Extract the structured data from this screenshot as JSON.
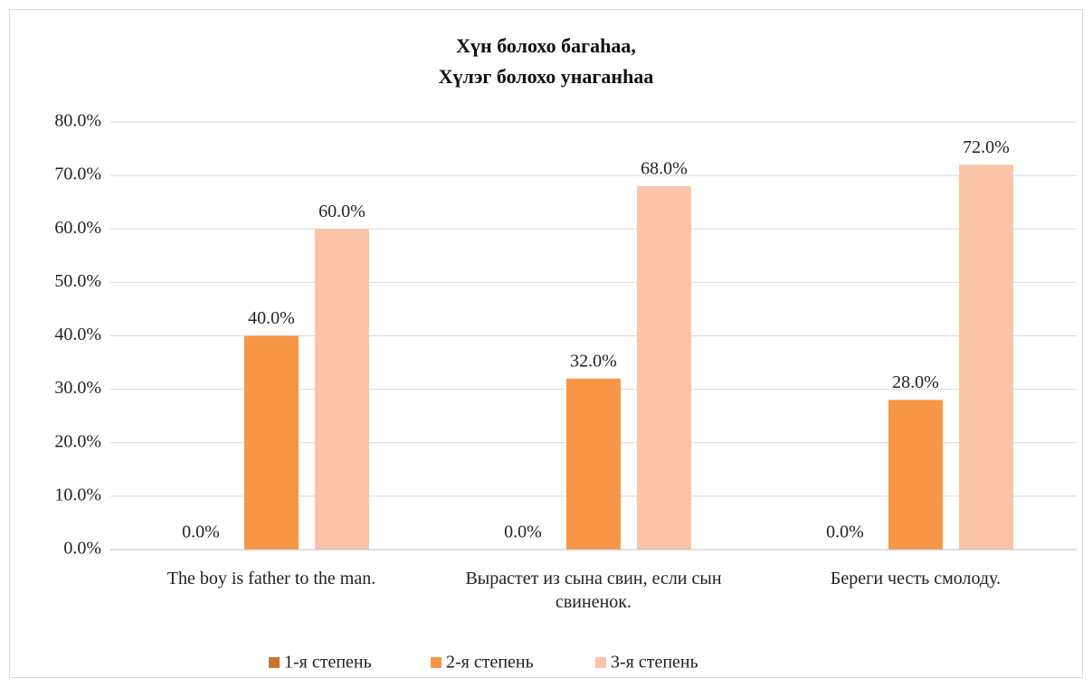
{
  "chart_data": {
    "type": "bar",
    "title": "Хүн болохо багаһаа,\nХүлэг болохо унаганһаа",
    "categories": [
      "The boy is father to the man.",
      "Вырастет из сына свин, если сын свиненок.",
      "Береги честь смолоду."
    ],
    "series": [
      {
        "name": "1-я степень",
        "color": "#c87533",
        "values": [
          0,
          0,
          0
        ],
        "value_labels": [
          "0.0%",
          "0.0%",
          "0.0%"
        ]
      },
      {
        "name": "2-я степень",
        "color": "#f79646",
        "values": [
          40,
          32,
          28
        ],
        "value_labels": [
          "40.0%",
          "32.0%",
          "28.0%"
        ]
      },
      {
        "name": "3-я степень",
        "color": "#fac4a8",
        "values": [
          60,
          68,
          72
        ],
        "value_labels": [
          "60.0%",
          "68.0%",
          "72.0%"
        ]
      }
    ],
    "ylim": [
      0,
      80
    ],
    "yticks": [
      {
        "value": 0,
        "label": "0.0%"
      },
      {
        "value": 10,
        "label": "10.0%"
      },
      {
        "value": 20,
        "label": "20.0%"
      },
      {
        "value": 30,
        "label": "30.0%"
      },
      {
        "value": 40,
        "label": "40.0%"
      },
      {
        "value": 50,
        "label": "50.0%"
      },
      {
        "value": 60,
        "label": "60.0%"
      },
      {
        "value": 70,
        "label": "70.0%"
      },
      {
        "value": 80,
        "label": "80.0%"
      }
    ],
    "grid": true,
    "legend": "bottom"
  }
}
